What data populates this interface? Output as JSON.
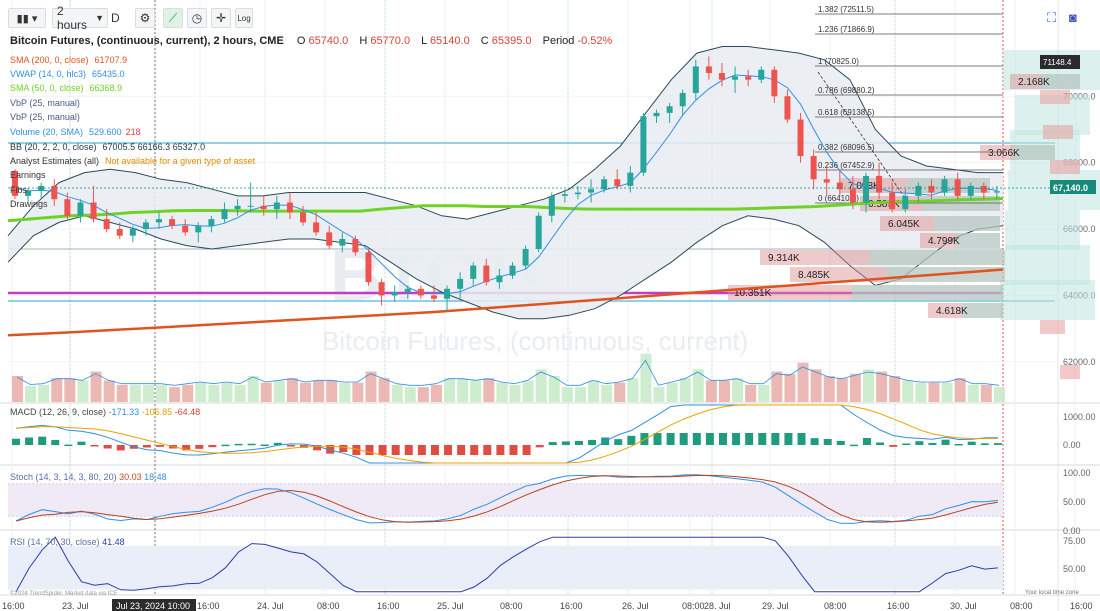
{
  "toolbar": {
    "interval": "2 hours",
    "interval_suffix": "D",
    "log_label": "Log",
    "icons": [
      "bars-icon",
      "settings-icon",
      "drawing-icon",
      "clock-icon",
      "crosshair-icon",
      "log-icon",
      "fullscreen-icon",
      "camera-icon"
    ]
  },
  "header": {
    "title": "Bitcoin Futures, (continuous, current), 2 hours, CME",
    "open_label": "O",
    "open": "65740.0",
    "high_label": "H",
    "high": "65770.0",
    "low_label": "L",
    "low": "65140.0",
    "close_label": "C",
    "close": "65395.0",
    "period_label": "Period",
    "period": "-0.52%"
  },
  "indicators": [
    {
      "name": "SMA (200, 0, close)",
      "value": "61707.9",
      "color": "#e0531f"
    },
    {
      "name": "VWAP (14, 0, hlc3)",
      "value": "65435.0",
      "color": "#2f8fe6"
    },
    {
      "name": "SMA (50, 0, close)",
      "value": "66368.9",
      "color": "#6fd325"
    },
    {
      "name": "VbP (25, manual)",
      "value": "",
      "color": "#4a5a8a"
    },
    {
      "name": "VbP (25, manual)",
      "value": "",
      "color": "#4a5a8a"
    },
    {
      "name": "Volume (20, SMA)",
      "value": "529.600",
      "value2": "218",
      "color": "#2f8fe6"
    },
    {
      "name": "BB (20, 2, 2, 0, close)",
      "value": "67005.5 66166.3 65327.0",
      "color": "#2b3a4a"
    },
    {
      "name": "Analyst Estimates (all)",
      "value": "Not available for a given type of asset",
      "color": "#333333",
      "value_color": "#e58a00"
    },
    {
      "name": "Earnings",
      "value": "",
      "color": "#333333"
    },
    {
      "name": "Fibs",
      "value": "",
      "color": "#333333"
    },
    {
      "name": "Drawings",
      "value": "",
      "color": "#333333"
    }
  ],
  "watermark": {
    "ticker": "BTC1!",
    "name": "Bitcoin Futures, (continuous, current)"
  },
  "copyright": "©2024 TrendSpider. Market data via ICE",
  "local_time_label": "Your local time zone",
  "price_badge": "67,140.0",
  "price_badge_top": "71148.4",
  "price_axis_ticks": [
    "70000.0",
    "68000.0",
    "66000.0",
    "64000.0",
    "62000.0"
  ],
  "x_axis": {
    "labels": [
      "16:00",
      "23. Jul",
      "Jul 23, 2024 10:00",
      "16:00",
      "24. Jul",
      "08:00",
      "16:00",
      "25. Jul",
      "08:00",
      "16:00",
      "26. Jul",
      "08:00",
      "28. Jul",
      "29. Jul",
      "08:00",
      "16:00",
      "30. Jul",
      "08:00",
      "16:00"
    ]
  },
  "fib_levels": [
    {
      "label": "1.382 (72511.5)"
    },
    {
      "label": "1.236 (71866.9)"
    },
    {
      "label": "1 (70825.0)"
    },
    {
      "label": "0.786 (69880.2)"
    },
    {
      "label": "0.618 (69138.5)"
    },
    {
      "label": "0.382 (68096.5)"
    },
    {
      "label": "0.236 (67452.9)"
    },
    {
      "label": "0 (66410.0)"
    }
  ],
  "vbp_labels": [
    "2.168K",
    "3.066K",
    "7.098K",
    "6.589K",
    "6.045K",
    "4.799K",
    "9.314K",
    "8.485K",
    "10.351K",
    "4.618K"
  ],
  "macd": {
    "legend": "MACD (12, 26, 9, close)",
    "v1": "-171.33",
    "v2": "-106.85",
    "v3": "-64.48",
    "ticks": [
      "1000.00",
      "0.00"
    ]
  },
  "stoch": {
    "legend": "Stoch (14, 3, 14, 3, 80, 20)",
    "v1": "30.03",
    "v2": "18.48",
    "ticks": [
      "100.00",
      "50.00",
      "0.00"
    ]
  },
  "rsi": {
    "legend": "RSI (14, 70, 30, close)",
    "v1": "41.48",
    "ticks": [
      "75.00",
      "50.00"
    ]
  },
  "colors": {
    "up": "#26a69a",
    "down": "#ef5350",
    "sma50": "#6fd325",
    "sma200": "#e0531f",
    "vwap": "#2f8fe6",
    "bb": "#2b4a5a"
  },
  "chart_data": {
    "type": "candlestick",
    "title": "Bitcoin Futures, (continuous, current), 2 hours, CME",
    "ylim": [
      61000,
      72600
    ],
    "candles": [
      [
        67750,
        67800,
        66900,
        67000
      ],
      [
        67000,
        67250,
        66800,
        67150
      ],
      [
        67150,
        67400,
        66900,
        67300
      ],
      [
        67300,
        67500,
        66700,
        66900
      ],
      [
        66900,
        67100,
        66300,
        66400
      ],
      [
        66400,
        66900,
        66200,
        66800
      ],
      [
        66800,
        67300,
        66200,
        66300
      ],
      [
        66300,
        66600,
        65900,
        66000
      ],
      [
        66000,
        66200,
        65700,
        65800
      ],
      [
        65800,
        66100,
        65600,
        66000
      ],
      [
        66000,
        66300,
        65800,
        66200
      ],
      [
        66200,
        66500,
        66000,
        66300
      ],
      [
        66300,
        66400,
        66000,
        66100
      ],
      [
        66100,
        66300,
        65800,
        65900
      ],
      [
        65900,
        66200,
        65600,
        66100
      ],
      [
        66100,
        66400,
        65900,
        66300
      ],
      [
        66300,
        66800,
        66200,
        66600
      ],
      [
        66600,
        66900,
        66400,
        66700
      ],
      [
        66700,
        67400,
        66500,
        66700
      ],
      [
        66700,
        67000,
        66400,
        66600
      ],
      [
        66600,
        67000,
        66300,
        66800
      ],
      [
        66800,
        67100,
        66300,
        66500
      ],
      [
        66500,
        66700,
        66100,
        66200
      ],
      [
        66200,
        66500,
        65800,
        65900
      ],
      [
        65900,
        66100,
        65400,
        65500
      ],
      [
        65500,
        65900,
        65300,
        65700
      ],
      [
        65700,
        65800,
        65200,
        65300
      ],
      [
        65300,
        65400,
        64300,
        64400
      ],
      [
        64400,
        64500,
        63700,
        64000
      ],
      [
        64000,
        64300,
        63800,
        64100
      ],
      [
        64100,
        64300,
        63900,
        64200
      ],
      [
        64200,
        64300,
        63900,
        64000
      ],
      [
        64000,
        64300,
        63800,
        63900
      ],
      [
        63900,
        64300,
        63500,
        64200
      ],
      [
        64200,
        64700,
        63900,
        64500
      ],
      [
        64500,
        65000,
        64300,
        64900
      ],
      [
        64900,
        65100,
        64300,
        64400
      ],
      [
        64400,
        64800,
        64200,
        64600
      ],
      [
        64600,
        65000,
        64500,
        64900
      ],
      [
        64900,
        65500,
        64800,
        65400
      ],
      [
        65400,
        66500,
        65300,
        66400
      ],
      [
        66400,
        67100,
        66200,
        67000
      ],
      [
        67000,
        67200,
        66800,
        67050
      ],
      [
        67050,
        67300,
        66900,
        67100
      ],
      [
        67100,
        67500,
        66800,
        67200
      ],
      [
        67200,
        67600,
        67100,
        67500
      ],
      [
        67500,
        67800,
        67200,
        67300
      ],
      [
        67300,
        67900,
        67100,
        67700
      ],
      [
        67700,
        69500,
        67600,
        69400
      ],
      [
        69400,
        69600,
        69200,
        69500
      ],
      [
        69500,
        69800,
        69200,
        69700
      ],
      [
        69700,
        70200,
        69400,
        70100
      ],
      [
        70100,
        71100,
        69900,
        70900
      ],
      [
        70900,
        71200,
        70500,
        70700
      ],
      [
        70700,
        71000,
        70300,
        70500
      ],
      [
        70500,
        70900,
        70100,
        70600
      ],
      [
        70600,
        70800,
        70300,
        70500
      ],
      [
        70500,
        70900,
        70400,
        70800
      ],
      [
        70800,
        70900,
        69800,
        70000
      ],
      [
        70000,
        70200,
        69200,
        69300
      ],
      [
        69300,
        69500,
        68000,
        68200
      ],
      [
        68200,
        68400,
        67200,
        67500
      ],
      [
        67500,
        67900,
        67000,
        67400
      ],
      [
        67400,
        67800,
        67000,
        67200
      ],
      [
        67200,
        67600,
        66600,
        66800
      ],
      [
        66800,
        67700,
        66500,
        67600
      ],
      [
        67600,
        68000,
        66900,
        67100
      ],
      [
        67100,
        67400,
        66500,
        66600
      ],
      [
        66600,
        67200,
        66500,
        67000
      ],
      [
        67000,
        67400,
        66800,
        67300
      ],
      [
        67300,
        67500,
        66900,
        67100
      ],
      [
        67100,
        67600,
        67000,
        67500
      ],
      [
        67500,
        67700,
        66900,
        67000
      ],
      [
        67000,
        67400,
        66900,
        67300
      ],
      [
        67300,
        67400,
        66900,
        67100
      ],
      [
        67100,
        67300,
        66900,
        67140
      ]
    ],
    "sma50": [
      66250,
      66300,
      66350,
      66400,
      66420,
      66450,
      66500,
      66520,
      66550,
      66560,
      66560,
      66550,
      66540,
      66540,
      66540,
      66540,
      66540,
      66540,
      66600,
      66650,
      66700,
      66700,
      66700,
      66680,
      66680,
      66680,
      66650,
      66620,
      66600,
      66600,
      66600,
      66600,
      66600,
      66600,
      66600,
      66600,
      66620,
      66640,
      66660,
      66680,
      66720,
      66760,
      66800,
      66820,
      66840,
      66860,
      66880,
      66900,
      66920
    ],
    "sma200": [
      62800,
      62850,
      62900,
      62960,
      63020,
      63080,
      63140,
      63200,
      63260,
      63320,
      63380,
      63440,
      63500,
      63580,
      63660,
      63740,
      63820,
      63900,
      63980,
      64060,
      64140,
      64220,
      64300,
      64380,
      64460,
      64540,
      64620,
      64700,
      64780
    ],
    "bb_upper": [
      65800,
      66700,
      67400,
      67700,
      67800,
      67700,
      67500,
      67400,
      67200,
      67000,
      67000,
      67100,
      67100,
      67100,
      67100,
      66900,
      66700,
      66400,
      66300,
      66500,
      66700,
      66900,
      67200,
      67800,
      68500,
      69500,
      70500,
      71300,
      71500,
      71500,
      71400,
      71300,
      71100,
      70500,
      69000,
      68200,
      67900,
      67800,
      67700,
      67700
    ],
    "bb_lower": [
      65000,
      65800,
      66200,
      66400,
      66200,
      66000,
      65700,
      65500,
      65400,
      65500,
      65600,
      65700,
      65700,
      65600,
      65500,
      65000,
      64500,
      64100,
      63800,
      63500,
      63300,
      63300,
      63400,
      63600,
      64000,
      64500,
      65000,
      65600,
      66100,
      66400,
      66300,
      66100,
      65600,
      64900,
      64300,
      64500,
      65100,
      65700,
      66000,
      66100
    ]
  }
}
